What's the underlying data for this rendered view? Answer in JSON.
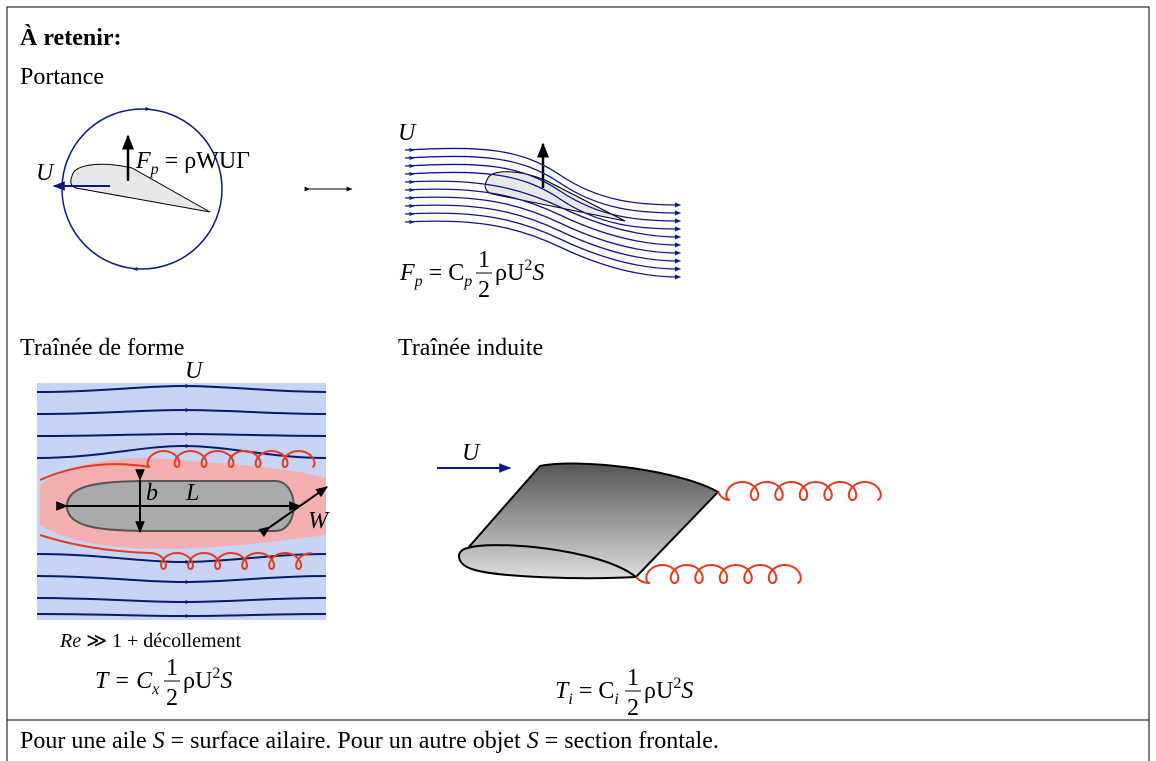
{
  "title": "À retenir:",
  "lift": {
    "heading": "Portance",
    "circulation": {
      "u": "U",
      "formula": [
        "F",
        "p",
        " = ρWUΓ"
      ]
    },
    "streamlines": {
      "u": "U",
      "formula": [
        "F",
        "p",
        " = C",
        "p",
        "1",
        "2",
        "ρU",
        "2",
        "S"
      ]
    }
  },
  "form_drag": {
    "heading": "Traînée de forme",
    "u": "U",
    "b": "b",
    "l": "L",
    "w": "W",
    "condition": [
      "Re",
      " ≫ 1 +  décollement"
    ],
    "formula": [
      "T = C",
      "x",
      "1",
      "2",
      "ρU",
      "2",
      "S"
    ]
  },
  "induced_drag": {
    "heading": "Traînée induite",
    "u": "U",
    "formula": [
      "T",
      "i",
      " = C",
      "i",
      "1",
      "2",
      "ρU",
      "2",
      "S"
    ]
  },
  "footer": [
    "Pour une aile ",
    "S",
    " = surface ailaire. Pour un autre objet ",
    "S",
    " = section frontale."
  ]
}
